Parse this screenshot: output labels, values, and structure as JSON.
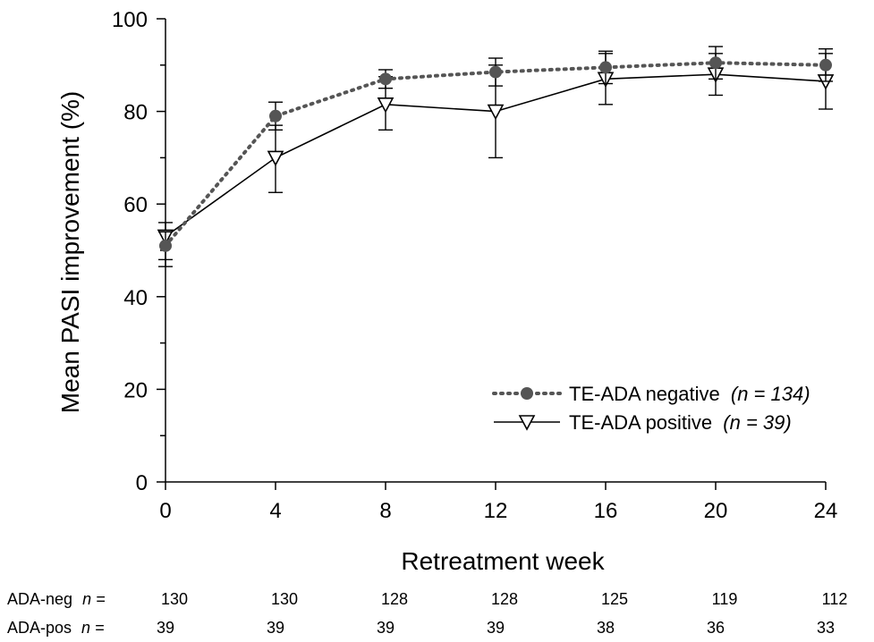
{
  "chart_data": {
    "type": "line",
    "xlabel": "Retreatment week",
    "ylabel": "Mean PASI improvement (%)",
    "x": [
      0,
      4,
      8,
      12,
      16,
      20,
      24
    ],
    "x_ticks": [
      "0",
      "4",
      "8",
      "12",
      "16",
      "20",
      "24"
    ],
    "y_ticks": [
      "0",
      "20",
      "40",
      "60",
      "80",
      "100"
    ],
    "xlim": [
      0,
      24
    ],
    "ylim": [
      0,
      100
    ],
    "grid": false,
    "legend_position": "bottom-right",
    "series": [
      {
        "name": "TE-ADA negative",
        "n_label": "(n = 134)",
        "marker": "filled-circle",
        "line_style": "dotted",
        "color": "#555555",
        "values": [
          51,
          79,
          87,
          88.5,
          89.5,
          90.5,
          90
        ],
        "error_upper": [
          54,
          82,
          89,
          91.5,
          93,
          94,
          93.5
        ],
        "error_lower": [
          48,
          76,
          85,
          85.5,
          86,
          87,
          86.5
        ]
      },
      {
        "name": "TE-ADA positive",
        "n_label": "(n = 39)",
        "marker": "open-triangle-down",
        "line_style": "solid",
        "color": "#000000",
        "values": [
          53,
          70,
          81.5,
          80,
          87,
          88,
          86.5
        ],
        "error_upper": [
          56,
          77,
          87.5,
          90,
          92.5,
          92.5,
          92.5
        ],
        "error_lower": [
          46.5,
          62.5,
          76,
          70,
          81.5,
          83.5,
          80.5
        ]
      }
    ],
    "n_table": [
      {
        "label": "ADA-neg",
        "n_prefix": "n =",
        "values": [
          "130",
          "130",
          "128",
          "128",
          "125",
          "119",
          "112"
        ]
      },
      {
        "label": "ADA-pos",
        "n_prefix": "n =",
        "values": [
          "39",
          "39",
          "39",
          "39",
          "38",
          "36",
          "33"
        ]
      }
    ]
  }
}
